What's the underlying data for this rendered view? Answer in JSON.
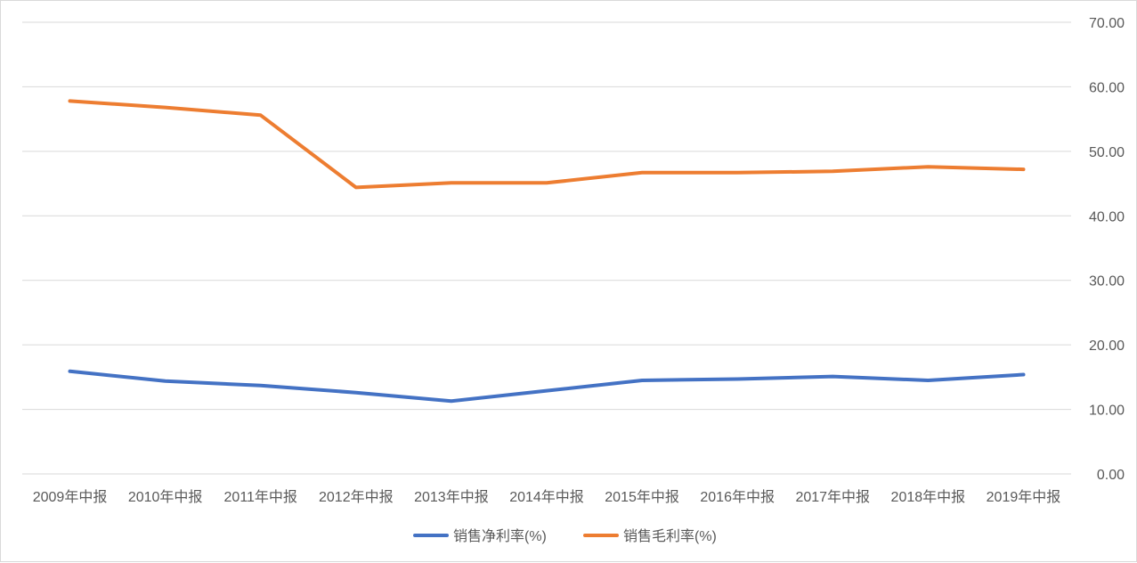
{
  "chart_data": {
    "type": "line",
    "categories": [
      "2009年中报",
      "2010年中报",
      "2011年中报",
      "2012年中报",
      "2013年中报",
      "2014年中报",
      "2015年中报",
      "2016年中报",
      "2017年中报",
      "2018年中报",
      "2019年中报"
    ],
    "series": [
      {
        "name": "销售净利率(%)",
        "color": "#4472c4",
        "values": [
          15.9,
          14.4,
          13.7,
          12.6,
          11.3,
          12.9,
          14.5,
          14.7,
          15.1,
          14.5,
          15.4
        ]
      },
      {
        "name": "销售毛利率(%)",
        "color": "#ed7d31",
        "values": [
          57.8,
          56.8,
          55.6,
          44.4,
          45.1,
          45.1,
          46.7,
          46.7,
          46.9,
          47.6,
          47.2
        ]
      }
    ],
    "y_ticks": [
      "0.00",
      "10.00",
      "20.00",
      "30.00",
      "40.00",
      "50.00",
      "60.00",
      "70.00"
    ],
    "ylim": [
      0,
      70
    ],
    "y_axis_side": "right",
    "grid": true,
    "legend_position": "bottom",
    "title": "",
    "xlabel": "",
    "ylabel": ""
  }
}
